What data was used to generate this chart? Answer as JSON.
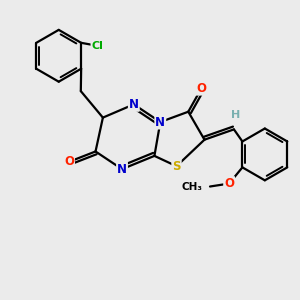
{
  "background_color": "#ebebeb",
  "atom_colors": {
    "C": "#000000",
    "N": "#0000cc",
    "O": "#ff2200",
    "S": "#ccaa00",
    "Cl": "#00aa00",
    "H": "#7ab0b0"
  },
  "bond_color": "#000000",
  "bond_width": 1.6,
  "font_size_atom": 8.5,
  "font_size_small": 7.5
}
